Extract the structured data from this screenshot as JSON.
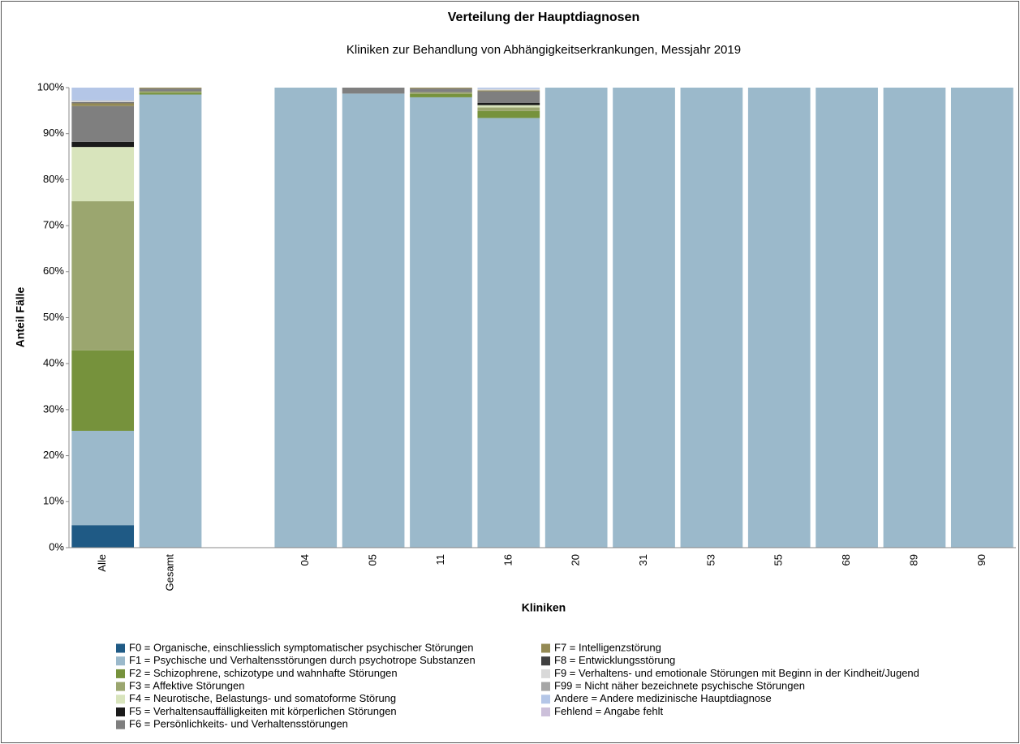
{
  "chart_data": {
    "type": "stacked_bar",
    "title": "Verteilung der Hauptdiagnosen",
    "subtitle": "Kliniken zur Behandlung von Abhängigkeitserkrankungen, Messjahr 2019",
    "x_label": "Kliniken",
    "y_label": "Anteil Fälle",
    "categories": [
      "Alle",
      "Gesamt",
      null,
      "04",
      "05",
      "11",
      "16",
      "20",
      "31",
      "53",
      "55",
      "68",
      "89",
      "90"
    ],
    "ylim": [
      0,
      100
    ],
    "yticks": [
      {
        "value": 0,
        "label": "0%"
      },
      {
        "value": 10,
        "label": "10%"
      },
      {
        "value": 20,
        "label": "20%"
      },
      {
        "value": 30,
        "label": "30%"
      },
      {
        "value": 40,
        "label": "40%"
      },
      {
        "value": 50,
        "label": "50%"
      },
      {
        "value": 60,
        "label": "60%"
      },
      {
        "value": 70,
        "label": "70%"
      },
      {
        "value": 80,
        "label": "80%"
      },
      {
        "value": 90,
        "label": "90%"
      },
      {
        "value": 100,
        "label": "100%"
      }
    ],
    "series": [
      {
        "name": "F0 = Organische, einschliesslich symptomatischer psychischer Störungen",
        "color": "#1f5a85",
        "values": [
          4.9,
          0,
          null,
          0,
          0,
          0,
          0,
          0,
          0,
          0,
          0,
          0,
          0,
          0
        ]
      },
      {
        "name": "F1 = Psychische und Verhaltensstörungen durch psychotrope Substanzen",
        "color": "#9bb9cb",
        "values": [
          20.5,
          98.5,
          null,
          100,
          98.7,
          97.9,
          93.4,
          100,
          100,
          100,
          100,
          100,
          100,
          100
        ]
      },
      {
        "name": "F2 = Schizophrene, schizotype und wahnhafte Störungen",
        "color": "#76923c",
        "values": [
          17.5,
          0.4,
          null,
          0,
          0,
          0.7,
          1.5,
          0,
          0,
          0,
          0,
          0,
          0,
          0
        ]
      },
      {
        "name": "F3 = Affektive Störungen",
        "color": "#9ba66f",
        "values": [
          32.4,
          0.3,
          null,
          0,
          0,
          0.4,
          0.8,
          0,
          0,
          0,
          0,
          0,
          0,
          0
        ]
      },
      {
        "name": "F4 = Neurotische, Belastungs- und somatoforme Störung",
        "color": "#d8e4bc",
        "values": [
          11.8,
          0,
          null,
          0,
          0,
          0,
          0.5,
          0,
          0,
          0,
          0,
          0,
          0,
          0
        ]
      },
      {
        "name": "F5 = Verhaltensauffälligkeiten mit körperlichen Störungen",
        "color": "#1a1a1a",
        "values": [
          1.1,
          0,
          null,
          0,
          0,
          0,
          0.5,
          0,
          0,
          0,
          0,
          0,
          0,
          0
        ]
      },
      {
        "name": "F6 = Persönlichkeits- und Verhaltensstörungen",
        "color": "#7f7f7f",
        "values": [
          7.8,
          0.6,
          null,
          0,
          1.3,
          0.8,
          2.5,
          0,
          0,
          0,
          0,
          0,
          0,
          0
        ]
      },
      {
        "name": "F7 = Intelligenzstörung",
        "color": "#948a54",
        "values": [
          0.6,
          0.2,
          null,
          0,
          0,
          0.2,
          0.2,
          0,
          0,
          0,
          0,
          0,
          0,
          0
        ]
      },
      {
        "name": "F8 = Entwicklungsstörung",
        "color": "#404040",
        "values": [
          0.2,
          0,
          null,
          0,
          0,
          0,
          0,
          0,
          0,
          0,
          0,
          0,
          0,
          0
        ]
      },
      {
        "name": "F9 = Verhaltens- und emotionale Störungen mit Beginn in der Kindheit/Jugend",
        "color": "#d9d9d9",
        "values": [
          0.3,
          0,
          null,
          0,
          0,
          0,
          0.3,
          0,
          0,
          0,
          0,
          0,
          0,
          0
        ]
      },
      {
        "name": "F99 = Nicht näher bezeichnete psychische Störungen",
        "color": "#a6a6a6",
        "values": [
          0.1,
          0,
          null,
          0,
          0,
          0,
          0,
          0,
          0,
          0,
          0,
          0,
          0,
          0
        ]
      },
      {
        "name": "Andere = Andere medizinische Hauptdiagnose",
        "color": "#b4c6e7",
        "values": [
          2.8,
          0,
          null,
          0,
          0,
          0,
          0.3,
          0,
          0,
          0,
          0,
          0,
          0,
          0
        ]
      },
      {
        "name": "Fehlend = Angabe fehlt",
        "color": "#ccc0da",
        "values": [
          0,
          0,
          null,
          0,
          0,
          0,
          0,
          0,
          0,
          0,
          0,
          0,
          0,
          0
        ]
      }
    ]
  }
}
